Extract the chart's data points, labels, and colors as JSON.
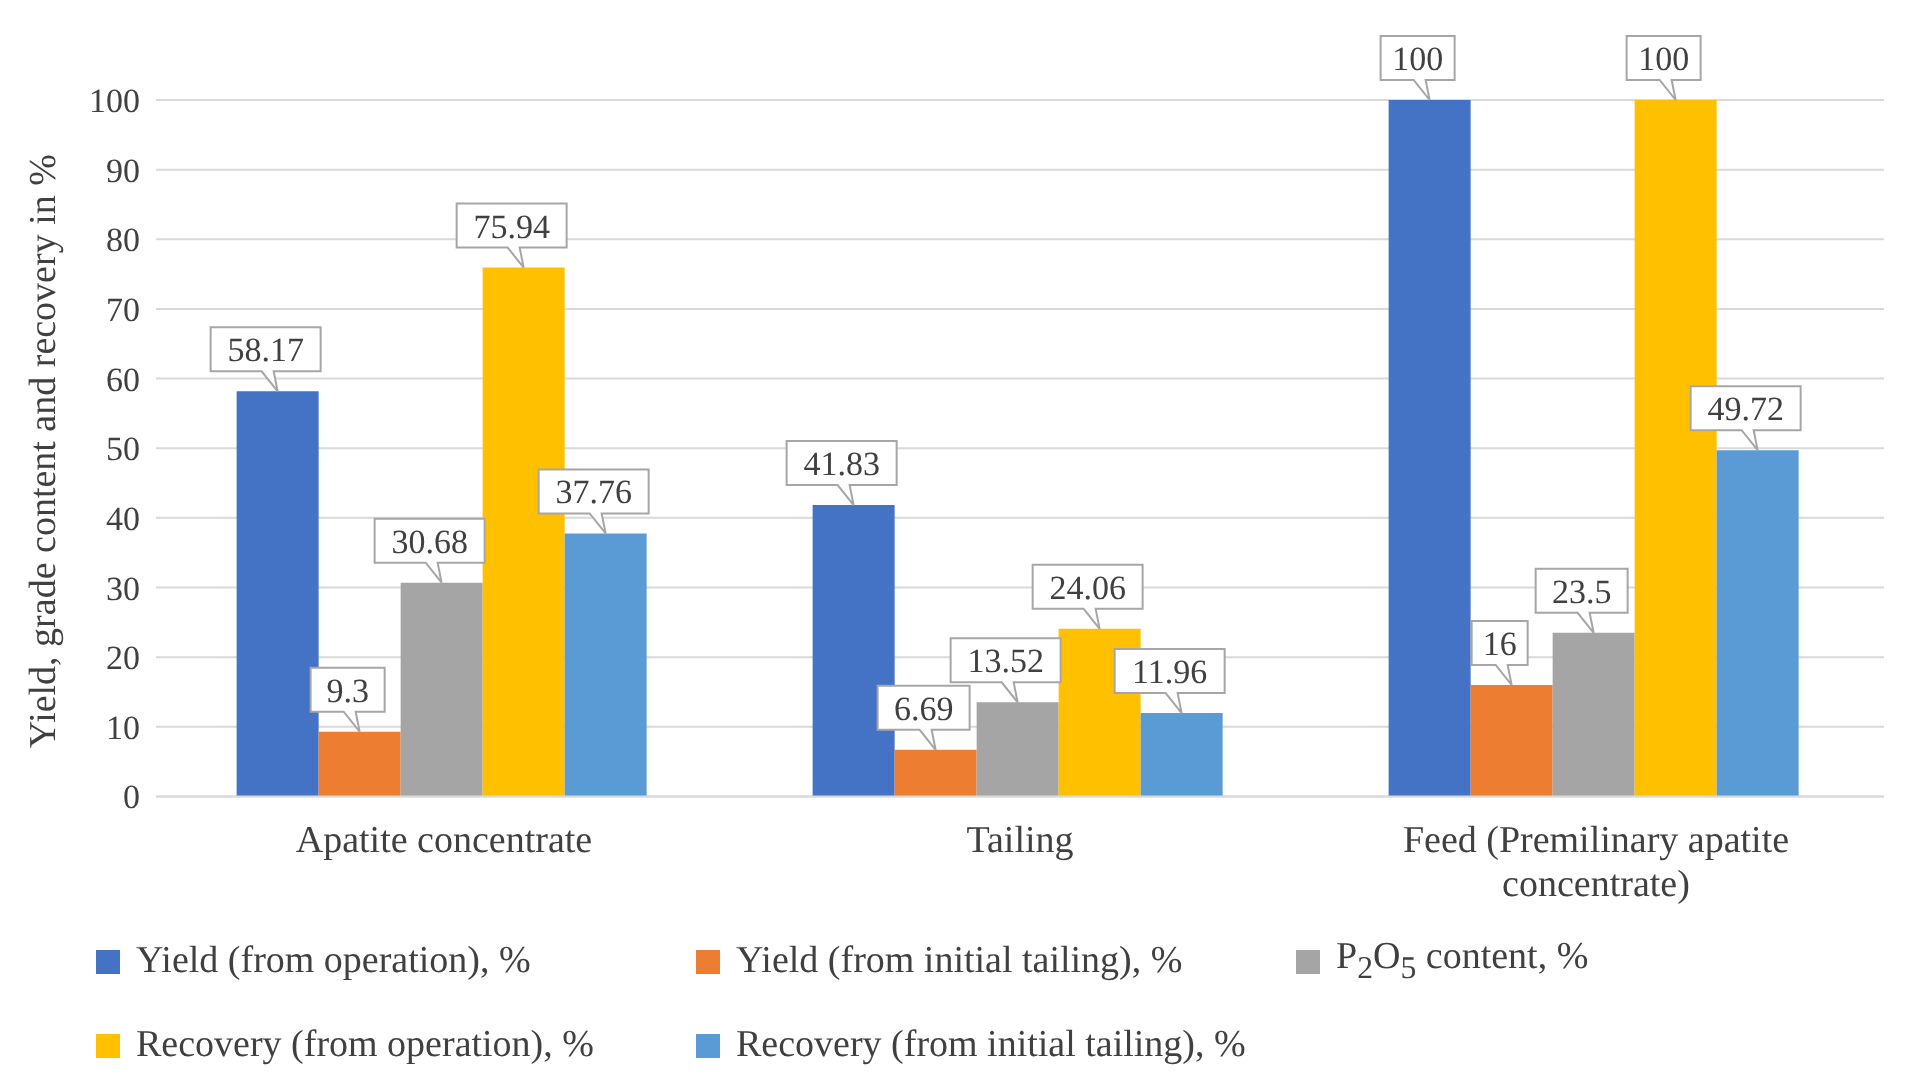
{
  "chart_data": {
    "type": "bar",
    "ylabel": "Yield, grade content and recovery in %",
    "categories": [
      "Apatite concentrate",
      "Tailing",
      "Feed (Premilinary apatite concentrate)"
    ],
    "series": [
      {
        "name": "Yield (from operation), %",
        "color": "#4472c4",
        "values": [
          58.17,
          41.83,
          100
        ]
      },
      {
        "name": "Yield (from initial tailing), %",
        "color": "#ed7d31",
        "values": [
          9.3,
          6.69,
          16
        ]
      },
      {
        "name": "P$_{2}$O$_{5}$ content, %",
        "color": "#a5a5a5",
        "values": [
          30.68,
          13.52,
          23.5
        ]
      },
      {
        "name": "Recovery (from operation), %",
        "color": "#ffc000",
        "values": [
          75.94,
          24.06,
          100
        ]
      },
      {
        "name": "Recovery (from initial tailing), %",
        "color": "#5b9bd5",
        "values": [
          37.76,
          11.96,
          49.72
        ]
      }
    ],
    "ylim": [
      0,
      100
    ],
    "yticks": [
      0,
      10,
      20,
      30,
      40,
      50,
      60,
      70,
      80,
      90,
      100
    ],
    "grid": "y",
    "legend": "bottom",
    "data_labels": true
  }
}
